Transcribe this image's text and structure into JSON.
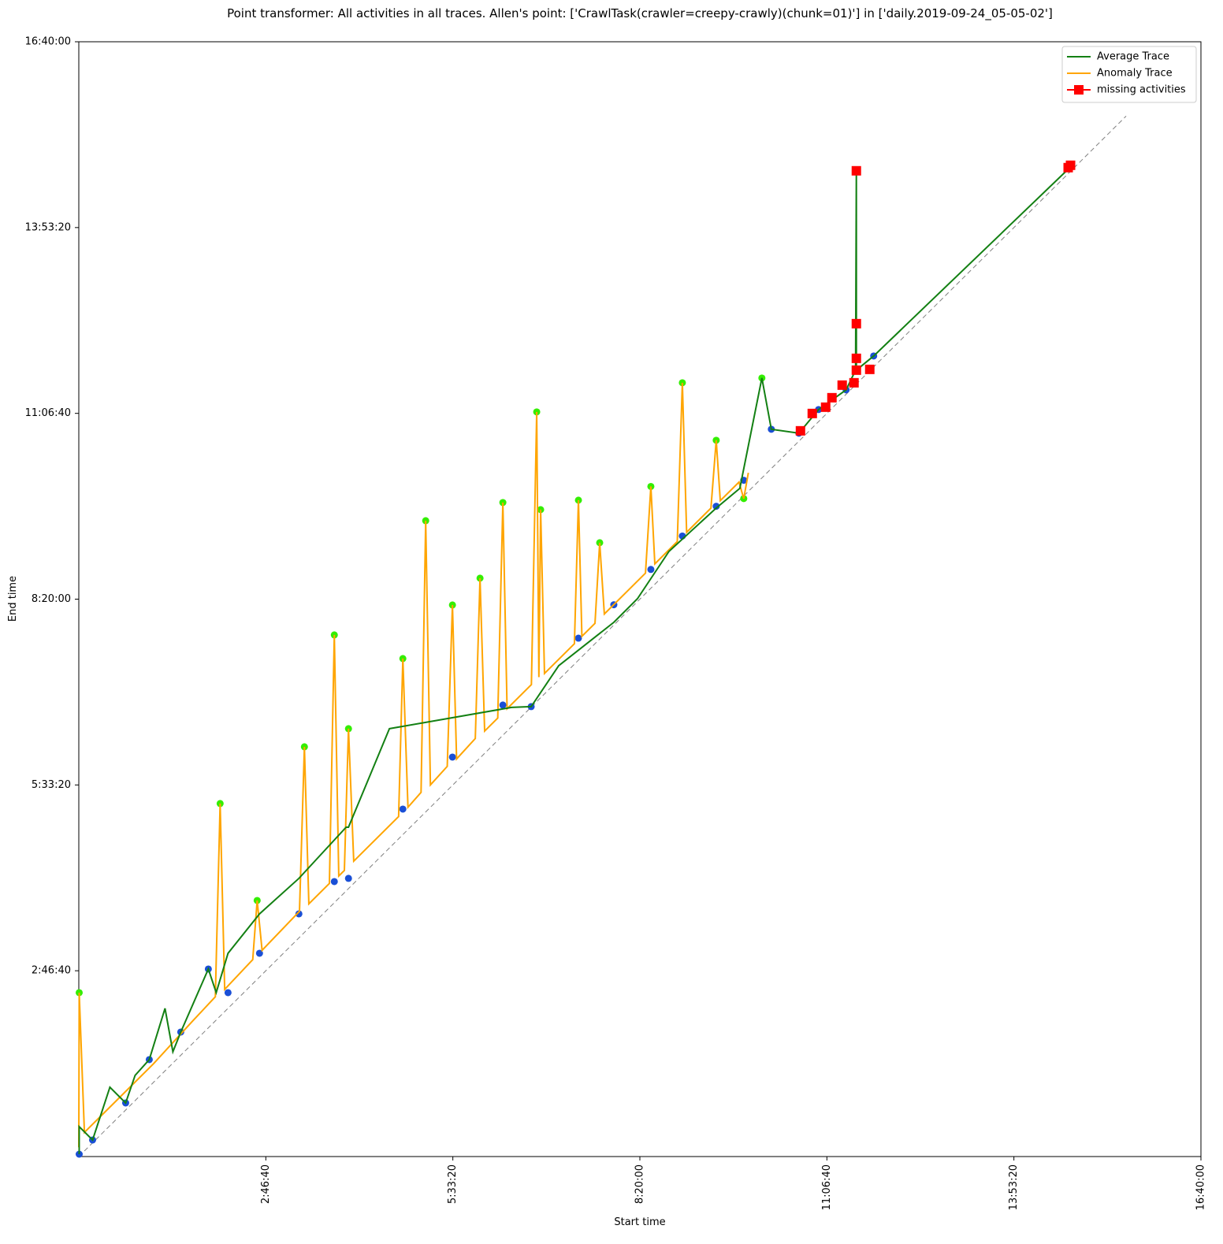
{
  "chart_data": {
    "type": "line",
    "title": "Point transformer: All activities in all traces. Allen's point: ['CrawlTask(crawler=creepy-crawly)(chunk=01)'] in ['daily.2019-09-24_05-05-02']",
    "x_label": "Start time",
    "y_label": "End time",
    "xlim": [
      0,
      60000
    ],
    "ylim": [
      0,
      60000
    ],
    "xticks": [
      {
        "value": 10000,
        "label": "2:46:40"
      },
      {
        "value": 20000,
        "label": "5:33:20"
      },
      {
        "value": 30000,
        "label": "8:20:00"
      },
      {
        "value": 40000,
        "label": "11:06:40"
      },
      {
        "value": 50000,
        "label": "13:53:20"
      },
      {
        "value": 60000,
        "label": "16:40:00"
      }
    ],
    "yticks": [
      {
        "value": 10000,
        "label": "2:46:40"
      },
      {
        "value": 20000,
        "label": "5:33:20"
      },
      {
        "value": 30000,
        "label": "8:20:00"
      },
      {
        "value": 40000,
        "label": "11:06:40"
      },
      {
        "value": 50000,
        "label": "13:53:20"
      },
      {
        "value": 60000,
        "label": "16:40:00"
      }
    ],
    "legend": "upper right",
    "diagonal": {
      "color": "#808080",
      "x": [
        0,
        56000
      ],
      "y": [
        0,
        56000
      ]
    },
    "scatter": [
      {
        "color": "#1a4fd6",
        "x": [
          21,
          737,
          2505,
          3768,
          5452,
          6926,
          7979,
          9663,
          11768,
          13662,
          14420,
          17327,
          19979,
          22674,
          24188,
          26715,
          28608,
          30588,
          32272,
          34082,
          35555,
          37029,
          38503,
          39555,
          41029,
          42502
        ],
        "y": [
          127,
          891,
          2884,
          5217,
          6701,
          10094,
          8821,
          10942,
          13062,
          14800,
          14971,
          18700,
          21500,
          24300,
          24216,
          27900,
          29700,
          31600,
          33400,
          35000,
          36400,
          39145,
          38932,
          40204,
          41265,
          43089
        ]
      },
      {
        "color": "#33ee00",
        "x": [
          21,
          7557,
          9537,
          12063,
          13662,
          14420,
          17327,
          18548,
          19979,
          21453,
          22674,
          24484,
          24694,
          26715,
          27852,
          30588,
          32272,
          34082,
          35555,
          36524
        ],
        "y": [
          8821,
          19000,
          13782,
          22053,
          28075,
          23029,
          26803,
          34224,
          29687,
          31129,
          35200,
          40077,
          34818,
          35327,
          33037,
          36066,
          41646,
          38550,
          35412,
          41901
        ]
      }
    ],
    "series": [
      {
        "name": "Anomaly Trace",
        "color": "#ffa500",
        "marker": "none",
        "x": [
          0,
          21,
          300,
          2000,
          4000,
          6000,
          7300,
          7557,
          7800,
          9300,
          9537,
          9800,
          11800,
          12063,
          12300,
          13400,
          13662,
          13900,
          14200,
          14420,
          14700,
          17100,
          17327,
          17600,
          18300,
          18548,
          18800,
          19700,
          19979,
          20200,
          21200,
          21453,
          21700,
          22400,
          22674,
          22900,
          24200,
          24484,
          24600,
          24694,
          24900,
          26500,
          26715,
          26900,
          27600,
          27852,
          28100,
          30300,
          30588,
          30800,
          32000,
          32272,
          32500,
          33800,
          34082,
          34300,
          35300,
          35555,
          35800
        ],
        "y": [
          500,
          8821,
          1300,
          3000,
          5000,
          7200,
          8600,
          19000,
          9000,
          10600,
          13782,
          11100,
          13200,
          22053,
          13600,
          14700,
          28075,
          15100,
          15400,
          23029,
          15900,
          18300,
          26803,
          18800,
          19600,
          34224,
          20000,
          21000,
          29687,
          21400,
          22500,
          31129,
          22900,
          23600,
          35200,
          24100,
          25400,
          40077,
          25800,
          34818,
          26000,
          27600,
          35327,
          28000,
          28700,
          33037,
          29200,
          31400,
          36066,
          31900,
          33100,
          41646,
          33600,
          34900,
          38550,
          35300,
          36300,
          35412,
          36800
        ]
      },
      {
        "name": "Average Trace",
        "color": "#138013",
        "marker": "none",
        "x": [
          21,
          21,
          737,
          1663,
          2505,
          3010,
          3768,
          4610,
          5031,
          5452,
          6926,
          7347,
          7979,
          9663,
          11768,
          14294,
          14420,
          16609,
          23135,
          24188,
          25661,
          28608,
          29872,
          31556,
          34082,
          35345,
          36524,
          37029,
          38503,
          39555,
          41029,
          41534,
          41576,
          41576,
          42502,
          52901
        ],
        "y": [
          127,
          1612,
          891,
          3732,
          2884,
          4368,
          5217,
          7973,
          5641,
          6701,
          10094,
          8821,
          10942,
          13062,
          14971,
          17727,
          17727,
          23029,
          24174,
          24216,
          26421,
          28754,
          30026,
          32571,
          34903,
          35964,
          41901,
          39145,
          38932,
          40204,
          41265,
          42325,
          53140,
          42325,
          43089,
          53140
        ]
      },
      {
        "name": "missing activities",
        "color": "#ff0000",
        "marker": "square",
        "x": [
          38587,
          39218,
          39934,
          40270,
          40817,
          41449,
          41576,
          41576,
          41576,
          41576,
          42292,
          52901,
          53028
        ],
        "y": [
          39060,
          39993,
          40332,
          40841,
          41519,
          41646,
          42325,
          42961,
          44827,
          53055,
          42367,
          53225,
          53352
        ]
      }
    ]
  }
}
